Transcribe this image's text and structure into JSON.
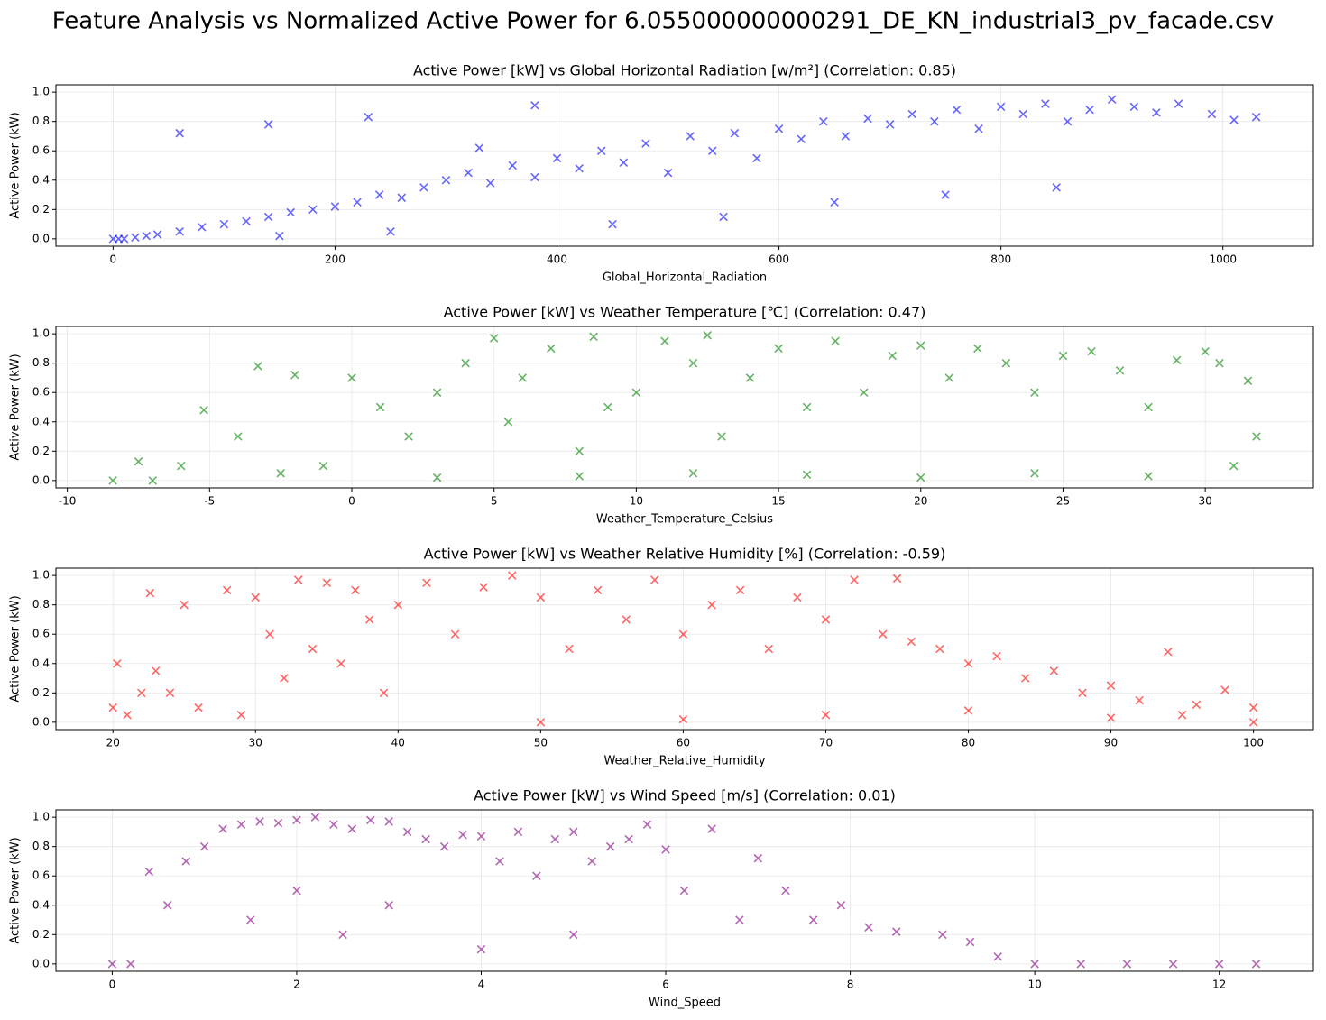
{
  "title": "Feature Analysis vs Normalized Active Power for 6.055000000000291_DE_KN_industrial3_pv_facade.csv",
  "chart_data": [
    {
      "type": "scatter",
      "title": "Active Power [kW] vs Global Horizontal Radiation [w/m²] (Correlation: 0.85)",
      "xlabel": "Global_Horizontal_Radiation",
      "ylabel": "Active Power (kW)",
      "color": "#0000ff",
      "marker": "x",
      "grid": true,
      "xlim": [
        -51.5,
        1081.5
      ],
      "ylim": [
        -0.05,
        1.05
      ],
      "xticks": [
        0,
        200,
        400,
        600,
        800,
        1000
      ],
      "yticks": [
        {
          "value": 0,
          "label": "0.0"
        },
        0.2,
        0.4,
        0.6,
        0.8,
        {
          "value": 1,
          "label": "1.0"
        }
      ],
      "x": [
        0,
        5,
        10,
        20,
        30,
        40,
        60,
        80,
        100,
        120,
        140,
        160,
        180,
        200,
        220,
        240,
        260,
        280,
        300,
        320,
        340,
        360,
        380,
        400,
        420,
        440,
        460,
        480,
        500,
        520,
        540,
        560,
        580,
        600,
        620,
        640,
        660,
        680,
        700,
        720,
        740,
        760,
        780,
        800,
        820,
        840,
        860,
        880,
        900,
        920,
        940,
        960,
        990,
        1010,
        1030,
        60,
        140,
        230,
        330,
        380,
        150,
        250,
        450,
        550,
        650,
        750,
        850
      ],
      "y": [
        0,
        0,
        0,
        0.01,
        0.02,
        0.03,
        0.05,
        0.08,
        0.1,
        0.12,
        0.15,
        0.18,
        0.2,
        0.22,
        0.25,
        0.3,
        0.28,
        0.35,
        0.4,
        0.45,
        0.38,
        0.5,
        0.42,
        0.55,
        0.48,
        0.6,
        0.52,
        0.65,
        0.45,
        0.7,
        0.6,
        0.72,
        0.55,
        0.75,
        0.68,
        0.8,
        0.7,
        0.82,
        0.78,
        0.85,
        0.8,
        0.88,
        0.75,
        0.9,
        0.85,
        0.92,
        0.8,
        0.88,
        0.95,
        0.9,
        0.86,
        0.92,
        0.85,
        0.81,
        0.83,
        0.72,
        0.78,
        0.83,
        0.62,
        0.91,
        0.02,
        0.05,
        0.1,
        0.15,
        0.25,
        0.3,
        0.35
      ]
    },
    {
      "type": "scatter",
      "title": "Active Power [kW] vs Weather Temperature [℃] (Correlation: 0.47)",
      "xlabel": "Weather_Temperature_Celsius",
      "ylabel": "Active Power (kW)",
      "color": "#008000",
      "marker": "x",
      "grid": true,
      "xlim": [
        -10.4,
        33.8
      ],
      "ylim": [
        -0.05,
        1.05
      ],
      "xticks": [
        -10,
        -5,
        0,
        5,
        10,
        15,
        20,
        25,
        30
      ],
      "yticks": [
        {
          "value": 0,
          "label": "0.0"
        },
        0.2,
        0.4,
        0.6,
        0.8,
        {
          "value": 1,
          "label": "1.0"
        }
      ],
      "x": [
        -8.4,
        -7.5,
        -7,
        -6,
        -5.2,
        -4,
        -3.3,
        -2.5,
        -2,
        -1,
        0,
        1,
        2,
        3,
        4,
        5,
        5.5,
        6,
        7,
        8,
        8.5,
        9,
        10,
        11,
        12,
        12.5,
        13,
        14,
        15,
        16,
        17,
        18,
        19,
        20,
        21,
        22,
        23,
        24,
        25,
        26,
        27,
        28,
        29,
        30,
        30.5,
        31,
        31.5,
        31.8,
        3,
        8,
        12,
        16,
        20,
        24,
        28
      ],
      "y": [
        0,
        0.13,
        0,
        0.1,
        0.48,
        0.3,
        0.78,
        0.05,
        0.72,
        0.1,
        0.7,
        0.5,
        0.3,
        0.6,
        0.8,
        0.97,
        0.4,
        0.7,
        0.9,
        0.2,
        0.98,
        0.5,
        0.6,
        0.95,
        0.8,
        0.99,
        0.3,
        0.7,
        0.9,
        0.5,
        0.95,
        0.6,
        0.85,
        0.92,
        0.7,
        0.9,
        0.8,
        0.6,
        0.85,
        0.88,
        0.75,
        0.5,
        0.82,
        0.88,
        0.8,
        0.1,
        0.68,
        0.3,
        0.02,
        0.03,
        0.05,
        0.04,
        0.02,
        0.05,
        0.03
      ]
    },
    {
      "type": "scatter",
      "title": "Active Power [kW] vs Weather Relative Humidity [%] (Correlation: -0.59)",
      "xlabel": "Weather_Relative_Humidity",
      "ylabel": "Active Power (kW)",
      "color": "#ff0000",
      "marker": "x",
      "grid": true,
      "xlim": [
        16,
        104.2
      ],
      "ylim": [
        -0.05,
        1.05
      ],
      "xticks": [
        20,
        30,
        40,
        50,
        60,
        70,
        80,
        90,
        100
      ],
      "yticks": [
        {
          "value": 0,
          "label": "0.0"
        },
        0.2,
        0.4,
        0.6,
        0.8,
        {
          "value": 1,
          "label": "1.0"
        }
      ],
      "x": [
        20,
        20.3,
        21,
        22,
        22.6,
        23,
        24,
        25,
        26,
        28,
        29,
        30,
        31,
        32,
        33,
        34,
        35,
        36,
        37,
        38,
        39,
        40,
        42,
        44,
        46,
        48,
        50,
        52,
        54,
        56,
        58,
        60,
        62,
        64,
        66,
        68,
        70,
        72,
        74,
        75,
        76,
        78,
        80,
        82,
        84,
        86,
        88,
        90,
        92,
        94,
        96,
        98,
        100,
        50,
        60,
        70,
        80,
        90,
        95,
        100
      ],
      "y": [
        0.1,
        0.4,
        0.05,
        0.2,
        0.88,
        0.35,
        0.2,
        0.8,
        0.1,
        0.9,
        0.05,
        0.85,
        0.6,
        0.3,
        0.97,
        0.5,
        0.95,
        0.4,
        0.9,
        0.7,
        0.2,
        0.8,
        0.95,
        0.6,
        0.92,
        1.0,
        0.85,
        0.5,
        0.9,
        0.7,
        0.97,
        0.6,
        0.8,
        0.9,
        0.5,
        0.85,
        0.7,
        0.97,
        0.6,
        0.98,
        0.55,
        0.5,
        0.4,
        0.45,
        0.3,
        0.35,
        0.2,
        0.25,
        0.15,
        0.48,
        0.12,
        0.22,
        0.1,
        0,
        0.02,
        0.05,
        0.08,
        0.03,
        0.05,
        0
      ]
    },
    {
      "type": "scatter",
      "title": "Active Power [kW] vs Wind Speed [m/s] (Correlation: 0.01)",
      "xlabel": "Wind_Speed",
      "ylabel": "Active Power (kW)",
      "color": "#800080",
      "marker": "x",
      "grid": true,
      "xlim": [
        -0.61,
        13.02
      ],
      "ylim": [
        -0.05,
        1.05
      ],
      "xticks": [
        0,
        2,
        4,
        6,
        8,
        10,
        12
      ],
      "yticks": [
        {
          "value": 0,
          "label": "0.0"
        },
        0.2,
        0.4,
        0.6,
        0.8,
        {
          "value": 1,
          "label": "1.0"
        }
      ],
      "x": [
        0,
        0.2,
        0.4,
        0.6,
        0.8,
        1,
        1.2,
        1.4,
        1.6,
        1.8,
        2,
        2.2,
        2.4,
        2.6,
        2.8,
        3,
        3.2,
        3.4,
        3.6,
        3.8,
        4,
        4.2,
        4.4,
        4.6,
        4.8,
        5,
        5.2,
        5.4,
        5.6,
        5.8,
        6,
        6.2,
        6.5,
        6.8,
        7,
        7.3,
        7.6,
        7.9,
        8.2,
        8.5,
        9,
        9.3,
        9.6,
        10,
        10.5,
        11,
        11.5,
        12,
        12.4,
        1.5,
        2,
        2.5,
        3,
        4,
        5
      ],
      "y": [
        0,
        0,
        0.63,
        0.4,
        0.7,
        0.8,
        0.92,
        0.95,
        0.97,
        0.96,
        0.98,
        1.0,
        0.95,
        0.92,
        0.98,
        0.97,
        0.9,
        0.85,
        0.8,
        0.88,
        0.87,
        0.7,
        0.9,
        0.6,
        0.85,
        0.9,
        0.7,
        0.8,
        0.85,
        0.95,
        0.78,
        0.5,
        0.92,
        0.3,
        0.72,
        0.5,
        0.3,
        0.4,
        0.25,
        0.22,
        0.2,
        0.15,
        0.05,
        0,
        0,
        0,
        0,
        0,
        0,
        0.3,
        0.5,
        0.2,
        0.4,
        0.1,
        0.2
      ]
    }
  ]
}
